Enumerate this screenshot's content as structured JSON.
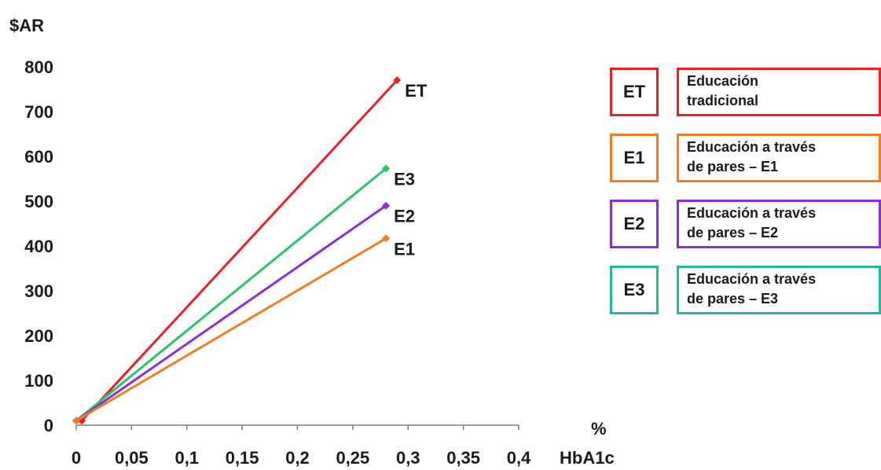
{
  "chart_data": {
    "type": "line",
    "ylabel": "$AR",
    "xlabel": "HbA1c",
    "xunit": "%",
    "xlim": [
      0,
      0.4
    ],
    "ylim": [
      0,
      800
    ],
    "xticks": [
      "0",
      "0,05",
      "0,1",
      "0,15",
      "0,2",
      "0,25",
      "0,3",
      "0,35",
      "0,4"
    ],
    "yticks": [
      "0",
      "100",
      "200",
      "300",
      "400",
      "500",
      "600",
      "700",
      "800"
    ],
    "series": [
      {
        "name": "ET",
        "color": "#e8202a",
        "x": [
          0.005,
          0.29
        ],
        "y": [
          10,
          770
        ]
      },
      {
        "name": "E3",
        "color": "#2bc46a",
        "x": [
          0.0,
          0.28
        ],
        "y": [
          10,
          573
        ]
      },
      {
        "name": "E2",
        "color": "#8b2fd0",
        "x": [
          0.0,
          0.28
        ],
        "y": [
          10,
          490
        ]
      },
      {
        "name": "E1",
        "color": "#f07e24",
        "x": [
          0.0,
          0.28
        ],
        "y": [
          10,
          417
        ]
      }
    ]
  },
  "legend": [
    {
      "code": "ET",
      "label": "Educación\ntradicional",
      "color": "#e8202a"
    },
    {
      "code": "E1",
      "label": "Educación a través\nde pares – E1",
      "color": "#f07e24"
    },
    {
      "code": "E2",
      "label": "Educación a través\nde pares – E2",
      "color": "#8b2fd0"
    },
    {
      "code": "E3",
      "label": "Educación a través\nde pares – E3",
      "color": "#1fb8a0"
    }
  ]
}
